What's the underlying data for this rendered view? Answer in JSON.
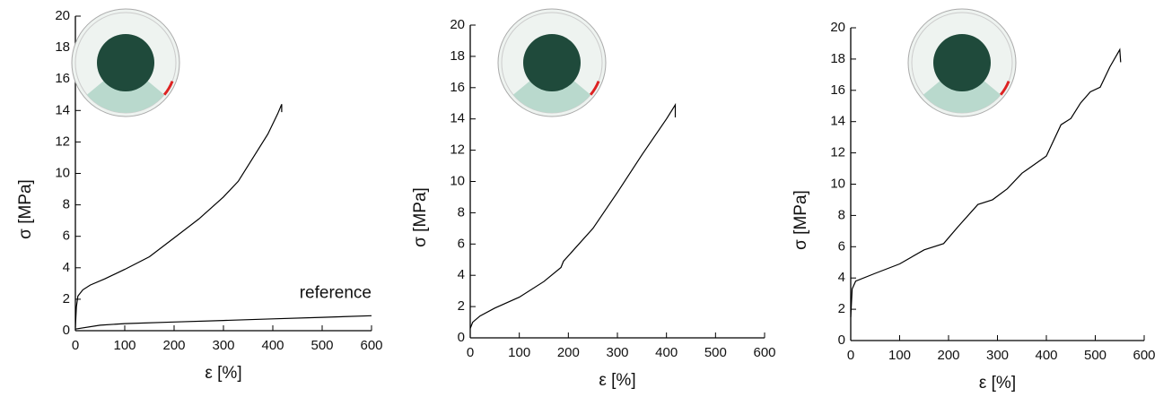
{
  "chart_data": [
    {
      "type": "line",
      "xlabel": "ε [%]",
      "ylabel": "σ [MPa]",
      "xlim": [
        0,
        600
      ],
      "xticks": [
        0,
        100,
        200,
        300,
        400,
        500,
        600
      ],
      "ylim": [
        0,
        20
      ],
      "yticks": [
        0,
        2,
        4,
        6,
        8,
        10,
        12,
        14,
        16,
        18,
        20
      ],
      "series": [
        {
          "color": "#000000",
          "x": [
            0,
            2,
            5,
            15,
            30,
            60,
            100,
            150,
            200,
            250,
            300,
            330,
            360,
            390,
            410,
            418,
            418
          ],
          "values": [
            0.2,
            1.5,
            2.2,
            2.6,
            2.9,
            3.3,
            3.9,
            4.7,
            5.9,
            7.1,
            8.5,
            9.5,
            11,
            12.5,
            13.8,
            14.4,
            13.9
          ]
        },
        {
          "name": "reference",
          "color": "#000000",
          "x": [
            0,
            50,
            100,
            200,
            300,
            400,
            500,
            600
          ],
          "values": [
            0.1,
            0.35,
            0.45,
            0.55,
            0.65,
            0.75,
            0.85,
            0.95
          ]
        }
      ]
    },
    {
      "type": "line",
      "xlabel": "ε [%]",
      "ylabel": "σ [MPa]",
      "xlim": [
        0,
        600
      ],
      "xticks": [
        0,
        100,
        200,
        300,
        400,
        500,
        600
      ],
      "ylim": [
        0,
        20
      ],
      "yticks": [
        0,
        2,
        4,
        6,
        8,
        10,
        12,
        14,
        16,
        18,
        20
      ],
      "series": [
        {
          "color": "#000000",
          "x": [
            0,
            5,
            20,
            50,
            100,
            150,
            185,
            190,
            250,
            300,
            350,
            400,
            418,
            418
          ],
          "values": [
            0.6,
            1,
            1.4,
            1.9,
            2.6,
            3.6,
            4.5,
            4.9,
            7,
            9.3,
            11.7,
            14,
            14.9,
            14.1
          ]
        }
      ]
    },
    {
      "type": "line",
      "xlabel": "ε [%]",
      "ylabel": "σ [MPa]",
      "xlim": [
        0,
        600
      ],
      "xticks": [
        0,
        100,
        200,
        300,
        400,
        500,
        600
      ],
      "ylim": [
        0,
        20
      ],
      "yticks": [
        0,
        2,
        4,
        6,
        8,
        10,
        12,
        14,
        16,
        18,
        20
      ],
      "series": [
        {
          "color": "#000000",
          "x": [
            0,
            3,
            10,
            50,
            100,
            150,
            190,
            220,
            260,
            290,
            320,
            350,
            400,
            430,
            450,
            470,
            490,
            510,
            530,
            550,
            552
          ],
          "values": [
            1.5,
            3.3,
            3.8,
            4.3,
            4.9,
            5.8,
            6.2,
            7.3,
            8.7,
            9.0,
            9.7,
            10.7,
            11.8,
            13.8,
            14.2,
            15.2,
            15.9,
            16.2,
            17.5,
            18.6,
            17.8
          ]
        }
      ]
    }
  ]
}
